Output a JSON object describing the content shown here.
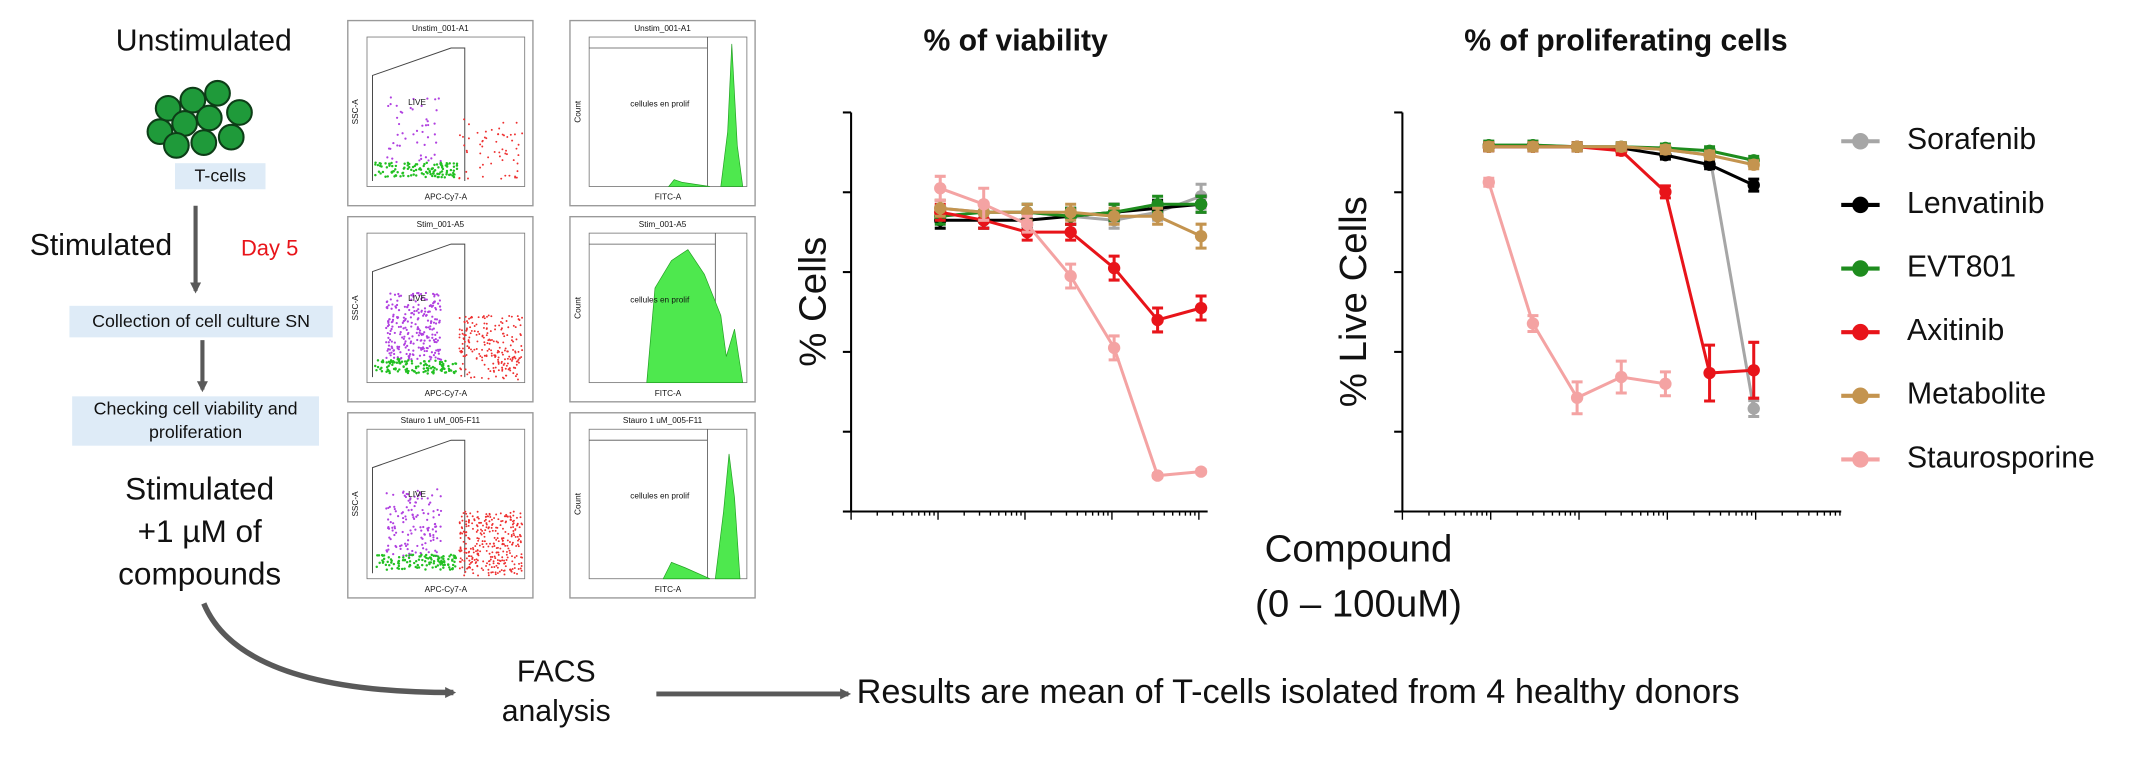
{
  "workflow": {
    "unstimulated": "Unstimulated",
    "cells_label": "T-cells",
    "stimulated": "Stimulated",
    "day": "Day 5",
    "step1": "Collection of cell culture SN",
    "step2": [
      "Checking cell viability and",
      "proliferation"
    ],
    "treated": [
      "Stimulated",
      "+1 µM of",
      "compounds"
    ],
    "facs": [
      "FACS",
      "analysis"
    ],
    "result": "Results are mean of T-cells isolated from 4 healthy donors"
  },
  "facs_panels": [
    {
      "title": "Unstim_001-A1",
      "gate": "LIVE",
      "x_label": "APC-Cy7-A",
      "y_label": "SSC-A"
    },
    {
      "title": "Unstim_001-A1",
      "gate": "cellules en prolif",
      "x_label": "FITC-A",
      "y_label": "Count"
    },
    {
      "title": "Stim_001-A5",
      "gate": "LIVE",
      "x_label": "APC-Cy7-A",
      "y_label": "SSC-A"
    },
    {
      "title": "Stim_001-A5",
      "gate": "cellules en prolif",
      "x_label": "FITC-A",
      "y_label": "Count"
    },
    {
      "title": "Stauro 1 uM_005-F11",
      "gate": "LIVE",
      "x_label": "APC-Cy7-A",
      "y_label": "SSC-A"
    },
    {
      "title": "Stauro 1 uM_005-F11",
      "gate": "cellules en prolif",
      "x_label": "FITC-A",
      "y_label": "Count"
    }
  ],
  "x_axis_label": [
    "Compound",
    "(0 – 100uM)"
  ],
  "chart_data": [
    {
      "type": "line",
      "title": "% of viability",
      "y_label": "% Cells",
      "x_scale": "log",
      "categories": [
        null,
        null,
        null,
        null,
        null,
        null,
        null
      ],
      "ylim": [
        0,
        100
      ],
      "yticks": [
        0,
        20,
        40,
        60,
        80,
        100
      ],
      "legend": false,
      "series": [
        {
          "name": "Sorafenib",
          "color": "#a6a6a6",
          "values": [
            76,
            75,
            75,
            74,
            73,
            75,
            79
          ],
          "errors": [
            2,
            2,
            2,
            2,
            2,
            2,
            3
          ]
        },
        {
          "name": "Lenvatinib",
          "color": "#000000",
          "values": [
            73,
            73,
            73,
            74,
            75,
            76,
            77
          ],
          "errors": [
            2,
            2,
            2,
            2,
            2,
            2,
            2
          ]
        },
        {
          "name": "EVT801",
          "color": "#1e8c1e",
          "values": [
            74,
            75,
            75,
            74,
            75,
            77,
            77
          ],
          "errors": [
            2,
            2,
            2,
            2,
            2,
            2,
            2
          ]
        },
        {
          "name": "Axitinib",
          "color": "#e8141a",
          "values": [
            75,
            73,
            70,
            70,
            61,
            48,
            51
          ],
          "errors": [
            2,
            2,
            2,
            2,
            3,
            3,
            3
          ]
        },
        {
          "name": "Metabolite",
          "color": "#c4944f",
          "values": [
            76,
            75,
            75,
            75,
            74,
            74,
            69
          ],
          "errors": [
            2,
            2,
            2,
            2,
            2,
            2,
            3
          ]
        },
        {
          "name": "Staurosporine",
          "color": "#f4a3a3",
          "values": [
            81,
            77,
            72,
            59,
            41,
            9,
            10
          ],
          "errors": [
            3,
            4,
            2,
            3,
            3,
            0.5,
            0.5
          ]
        }
      ]
    },
    {
      "type": "line",
      "title": "% of proliferating cells",
      "y_label": "% Live Cells",
      "x_scale": "log",
      "categories": [
        null,
        null,
        null,
        null,
        null,
        null,
        null
      ],
      "ylim": [
        0,
        100
      ],
      "yticks": [
        0,
        20,
        40,
        60,
        80,
        100
      ],
      "legend": "right",
      "series": [
        {
          "name": "Sorafenib",
          "color": "#a6a6a6",
          "values": [
            91.8,
            91.8,
            91.4,
            91.4,
            90.7,
            89.3,
            25.8
          ],
          "errors": [
            1,
            1,
            1,
            1,
            1,
            1,
            2
          ]
        },
        {
          "name": "Lenvatinib",
          "color": "#000000",
          "values": [
            91.4,
            91.4,
            91.4,
            91.1,
            89.3,
            86.9,
            81.8
          ],
          "errors": [
            1,
            1,
            1,
            1,
            1,
            1,
            1.5
          ]
        },
        {
          "name": "EVT801",
          "color": "#1e8c1e",
          "values": [
            91.8,
            91.8,
            91.4,
            91.4,
            91.1,
            90.4,
            88.0
          ],
          "errors": [
            1,
            1,
            1,
            1,
            1,
            1,
            1
          ]
        },
        {
          "name": "Axitinib",
          "color": "#e8141a",
          "values": [
            91.4,
            91.4,
            91.4,
            90.4,
            80.1,
            34.7,
            35.4
          ],
          "errors": [
            1,
            1,
            1,
            1,
            1.5,
            7,
            7
          ]
        },
        {
          "name": "Metabolite",
          "color": "#c4944f",
          "values": [
            91.4,
            91.4,
            91.4,
            91.4,
            90.7,
            89.3,
            86.9
          ],
          "errors": [
            1,
            1,
            1,
            1,
            1,
            1,
            1
          ]
        },
        {
          "name": "Staurosporine",
          "color": "#f4a3a3",
          "values": [
            82.5,
            47.1,
            28.5,
            33.7,
            32.0,
            null,
            null
          ],
          "errors": [
            1,
            2,
            4,
            4,
            3,
            null,
            null
          ]
        }
      ]
    }
  ]
}
